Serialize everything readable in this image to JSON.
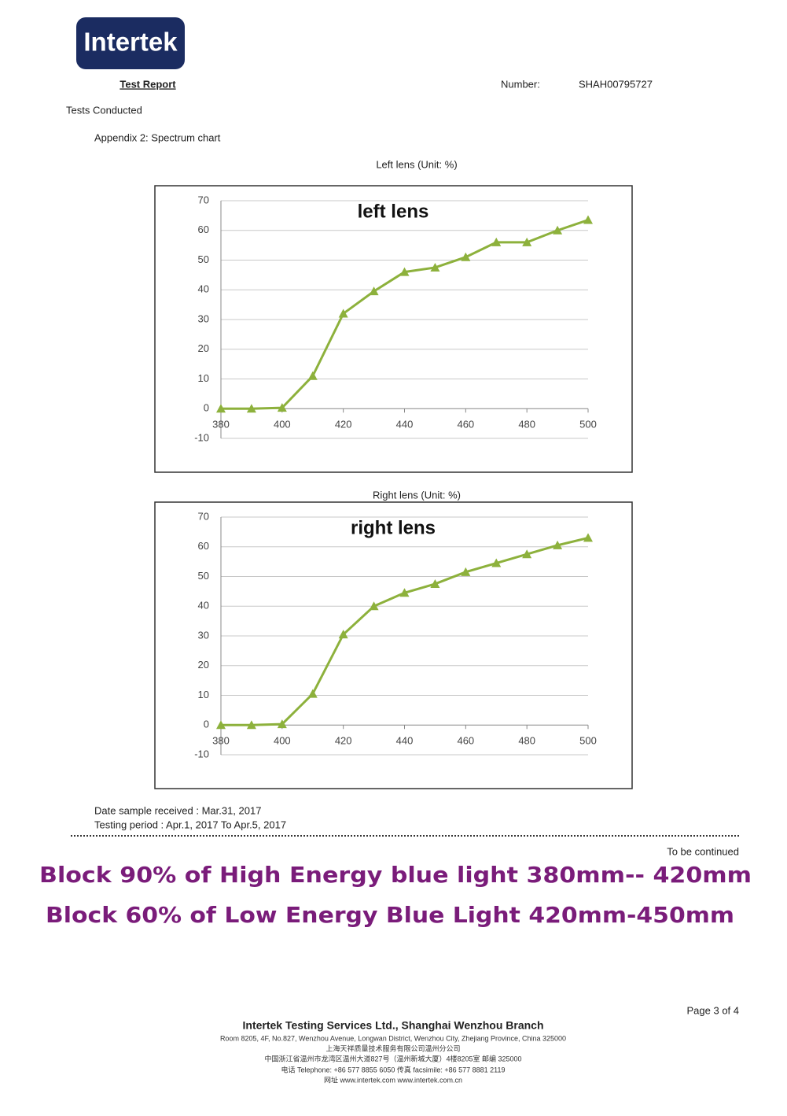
{
  "header": {
    "logo": "Intertek",
    "title": "Test Report",
    "number_label": "Number:",
    "number": "SHAH00795727",
    "section": "Tests Conducted",
    "appendix": "Appendix 2: Spectrum chart"
  },
  "chart_data": [
    {
      "type": "line",
      "title": "Left lens (Unit: %)",
      "annotation": "left lens",
      "x": [
        380,
        390,
        400,
        410,
        420,
        430,
        440,
        450,
        460,
        470,
        480,
        490,
        500
      ],
      "values": [
        0,
        0,
        0.3,
        11,
        32,
        39.5,
        46,
        47.5,
        51,
        56,
        56,
        60,
        63.5
      ],
      "color": "#8db13c",
      "xlim": [
        380,
        500
      ],
      "xticks": [
        380,
        400,
        420,
        440,
        460,
        480,
        500
      ],
      "ylim": [
        -10,
        70
      ],
      "yticks": [
        -10,
        0,
        10,
        20,
        30,
        40,
        50,
        60,
        70
      ],
      "grid": true
    },
    {
      "type": "line",
      "title": "Right lens (Unit: %)",
      "annotation": "right lens",
      "x": [
        380,
        390,
        400,
        410,
        420,
        430,
        440,
        450,
        460,
        470,
        480,
        490,
        500
      ],
      "values": [
        0,
        0,
        0.3,
        10.5,
        30.5,
        40,
        44.5,
        47.5,
        51.5,
        54.5,
        57.5,
        60.5,
        63
      ],
      "color": "#8db13c",
      "xlim": [
        380,
        500
      ],
      "xticks": [
        380,
        400,
        420,
        440,
        460,
        480,
        500
      ],
      "ylim": [
        -10,
        70
      ],
      "yticks": [
        -10,
        0,
        10,
        20,
        30,
        40,
        50,
        60,
        70
      ],
      "grid": true
    }
  ],
  "dates": {
    "received": "Date sample received : Mar.31, 2017",
    "period": "Testing period : Apr.1, 2017 To Apr.5, 2017"
  },
  "continued": "To be continued",
  "claims": [
    "Block 90% of High Energy blue light  380mm-- 420mm",
    "Block 60% of Low Energy Blue Light 420mm-450mm"
  ],
  "footer": {
    "page": "Page 3 of 4",
    "company": "Intertek Testing Services Ltd., Shanghai Wenzhou Branch",
    "address": "Room 8205, 4F, No.827, Wenzhou Avenue, Longwan District, Wenzhou City, Zhejiang Province, China 325000",
    "lines": [
      "上海天祥质量技术服务有限公司温州分公司",
      "中国浙江省温州市龙湾区温州大道827号（温州新城大厦）4楼8205室 邮编 325000",
      "电话 Telephone: +86 577 8855 6050 传真 facsimile: +86 577 8881 2119",
      "网址 www.intertek.com    www.intertek.com.cn"
    ]
  }
}
